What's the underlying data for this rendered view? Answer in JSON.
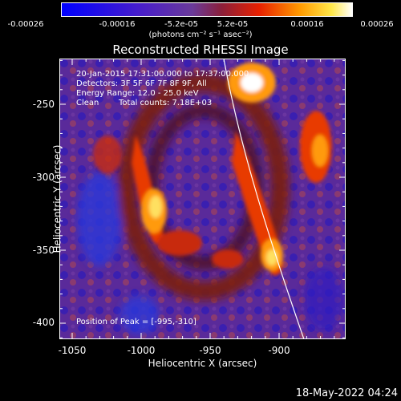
{
  "colorbar": {
    "ticks": [
      "-0.00026",
      "-0.00016",
      "-5.2e-05",
      "5.2e-05",
      "0.00016",
      "0.00026"
    ],
    "unit": "(photons cm⁻² s⁻¹ asec⁻²)"
  },
  "title": "Reconstructed RHESSI Image",
  "info": {
    "line1": "20-Jan-2015 17:31:00.000 to 17:37:00.000",
    "line2": "Detectors: 3F 5F 6F 7F 8F 9F, All",
    "line3": "Energy Range: 12.0 - 25.0 keV",
    "line4_method": "Clean",
    "line4_counts": "Total counts: 7.18E+03"
  },
  "peak": "Position of Peak = [-995,-310]",
  "axes": {
    "xlabel": "Heliocentric X (arcsec)",
    "ylabel": "Heliocentric Y (arcsec)",
    "xticks": [
      "-1050",
      "-1000",
      "-950",
      "-900"
    ],
    "yticks": [
      "-250",
      "-300",
      "-350",
      "-400"
    ]
  },
  "footer": "18-May-2022 04:24"
}
